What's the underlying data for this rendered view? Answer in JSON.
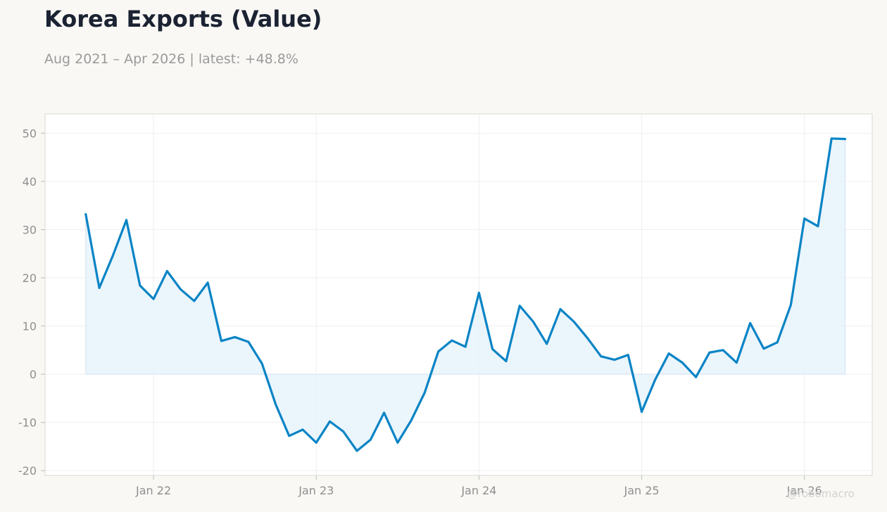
{
  "header": {
    "title": "Korea Exports (Value)",
    "subtitle": "Aug 2021 – Apr 2026 | latest: +48.8%"
  },
  "watermark": "@robomacro",
  "colors": {
    "line": "#0a84c5",
    "fill": "#e7f3fb",
    "background": "#f9f8f5",
    "plot_background": "#ffffff",
    "grid": "#efefef",
    "axis_text": "#8f8f8f"
  },
  "chart_data": {
    "type": "area",
    "title": "Korea Exports (Value)",
    "subtitle": "Aug 2021 – Apr 2026 | latest: +48.8%",
    "xlabel": "",
    "ylabel": "",
    "ylim": [
      -21,
      54
    ],
    "xlim": [
      "2021-05",
      "2026-06"
    ],
    "grid": true,
    "yticks": [
      -20,
      -10,
      0,
      10,
      20,
      30,
      40,
      50
    ],
    "xticks": [
      {
        "label": "Jan 22",
        "date": "2022-01"
      },
      {
        "label": "Jan 23",
        "date": "2023-01"
      },
      {
        "label": "Jan 24",
        "date": "2024-01"
      },
      {
        "label": "Jan 25",
        "date": "2025-01"
      },
      {
        "label": "Jan 26",
        "date": "2026-01"
      }
    ],
    "series": [
      {
        "x": [
          "2021-08",
          "2021-09",
          "2021-10",
          "2021-11",
          "2021-12",
          "2022-01",
          "2022-02",
          "2022-03",
          "2022-04",
          "2022-05",
          "2022-06",
          "2022-07",
          "2022-08",
          "2022-09",
          "2022-10",
          "2022-11",
          "2022-12",
          "2023-01",
          "2023-02",
          "2023-03",
          "2023-04",
          "2023-05",
          "2023-06",
          "2023-07",
          "2023-08",
          "2023-09",
          "2023-10",
          "2023-11",
          "2023-12",
          "2024-01",
          "2024-02",
          "2024-03",
          "2024-04",
          "2024-05",
          "2024-06",
          "2024-07",
          "2024-08",
          "2024-09",
          "2024-10",
          "2024-11",
          "2024-12",
          "2025-01",
          "2025-02",
          "2025-03",
          "2025-04",
          "2025-05",
          "2025-06",
          "2025-07",
          "2025-08",
          "2025-09",
          "2025-10",
          "2025-11",
          "2025-12",
          "2026-01",
          "2026-02",
          "2026-03",
          "2026-04"
        ],
        "values": [
          33.2,
          17.9,
          24.6,
          32.0,
          18.4,
          15.6,
          21.4,
          17.6,
          15.2,
          19.0,
          6.9,
          7.7,
          6.7,
          2.2,
          -6.2,
          -12.8,
          -11.5,
          -14.2,
          -9.8,
          -11.9,
          -15.9,
          -13.6,
          -8.0,
          -14.2,
          -9.6,
          -3.8,
          4.7,
          7.0,
          5.7,
          16.9,
          5.2,
          2.7,
          14.2,
          10.9,
          6.3,
          13.5,
          10.9,
          7.5,
          3.7,
          3.0,
          4.0,
          -7.8,
          -1.1,
          4.3,
          2.4,
          -0.6,
          4.5,
          5.0,
          2.4,
          10.6,
          5.3,
          6.6,
          14.4,
          32.3,
          30.7,
          48.9,
          48.8
        ]
      }
    ]
  }
}
